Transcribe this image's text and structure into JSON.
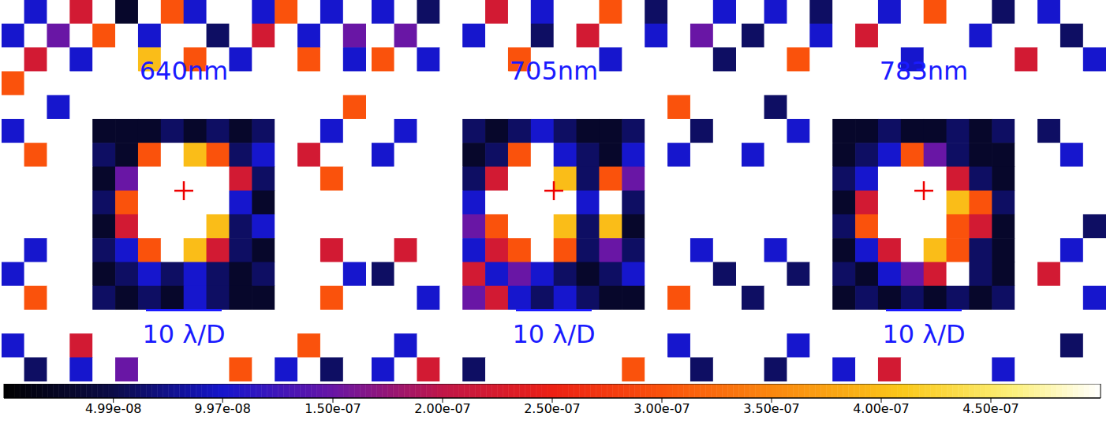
{
  "chart_data": {
    "type": "heatmap",
    "tick_labels": false,
    "panels": [
      {
        "title": "640nm",
        "annotation": "10 λ/D",
        "cells": [
          [
            5e-07,
            1e-07,
            5e-07,
            2.2e-07,
            5e-07,
            3e-08,
            5e-07,
            3e-07,
            1e-07,
            5e-07,
            5e-07,
            1e-07,
            3e-07,
            5e-07,
            1e-07,
            5e-07
          ],
          [
            1e-07,
            5e-07,
            1.5e-07,
            5e-07,
            3e-07,
            5e-07,
            1e-07,
            5e-07,
            5e-07,
            6e-08,
            5e-07,
            2.2e-07,
            5e-07,
            1e-07,
            5e-07,
            1.5e-07
          ],
          [
            5e-07,
            2.2e-07,
            5e-07,
            1e-07,
            5e-07,
            5e-07,
            4e-07,
            5e-07,
            3e-07,
            5e-07,
            1e-07,
            5e-07,
            5e-07,
            3e-07,
            5e-07,
            1e-07
          ],
          [
            3e-07,
            5e-07,
            5e-07,
            5e-07,
            5e-07,
            5e-07,
            5e-07,
            5e-07,
            5e-07,
            5e-07,
            5e-07,
            5e-07,
            5e-07,
            5e-07,
            5e-07,
            5e-07
          ],
          [
            5e-07,
            5e-07,
            1e-07,
            5e-07,
            5e-07,
            5e-07,
            5e-07,
            5e-07,
            5e-07,
            5e-07,
            5e-07,
            5e-07,
            5e-07,
            5e-07,
            5e-07,
            3e-07
          ],
          [
            1e-07,
            5e-07,
            5e-07,
            5e-07,
            3e-08,
            3e-08,
            3e-08,
            6e-08,
            3e-08,
            6e-08,
            3e-08,
            6e-08,
            5e-07,
            5e-07,
            1e-07,
            5e-07
          ],
          [
            5e-07,
            3e-07,
            5e-07,
            5e-07,
            6e-08,
            3e-08,
            3e-07,
            5e-07,
            4e-07,
            3e-07,
            6e-08,
            1e-07,
            5e-07,
            2.2e-07,
            5e-07,
            5e-07
          ],
          [
            5e-07,
            5e-07,
            5e-07,
            5e-07,
            3e-08,
            1.5e-07,
            5e-07,
            5e-07,
            5e-07,
            5e-07,
            2.2e-07,
            6e-08,
            5e-07,
            5e-07,
            3e-07,
            5e-07
          ],
          [
            5e-07,
            5e-07,
            5e-07,
            5e-07,
            6e-08,
            3e-07,
            5e-07,
            5e-07,
            5e-07,
            5e-07,
            1e-07,
            3e-08,
            5e-07,
            5e-07,
            5e-07,
            5e-07
          ],
          [
            5e-07,
            5e-07,
            5e-07,
            5e-07,
            3e-08,
            2.2e-07,
            5e-07,
            5e-07,
            5e-07,
            4e-07,
            6e-08,
            1e-07,
            5e-07,
            5e-07,
            5e-07,
            5e-07
          ],
          [
            5e-07,
            1e-07,
            5e-07,
            5e-07,
            6e-08,
            1e-07,
            3e-07,
            5e-07,
            4e-07,
            2.2e-07,
            6e-08,
            3e-08,
            5e-07,
            5e-07,
            2.2e-07,
            5e-07
          ],
          [
            1e-07,
            5e-07,
            5e-07,
            5e-07,
            3e-08,
            6e-08,
            1e-07,
            6e-08,
            1e-07,
            6e-08,
            3e-08,
            6e-08,
            5e-07,
            5e-07,
            5e-07,
            1e-07
          ],
          [
            5e-07,
            3e-07,
            5e-07,
            5e-07,
            6e-08,
            3e-08,
            6e-08,
            3e-08,
            1e-07,
            6e-08,
            3e-08,
            3e-08,
            5e-07,
            5e-07,
            3e-07,
            5e-07
          ],
          [
            5e-07,
            5e-07,
            5e-07,
            5e-07,
            5e-07,
            5e-07,
            5e-07,
            5e-07,
            5e-07,
            5e-07,
            5e-07,
            5e-07,
            5e-07,
            5e-07,
            5e-07,
            5e-07
          ],
          [
            1e-07,
            5e-07,
            5e-07,
            2.2e-07,
            5e-07,
            5e-07,
            5e-07,
            5e-07,
            5e-07,
            5e-07,
            5e-07,
            5e-07,
            5e-07,
            3e-07,
            5e-07,
            5e-07
          ],
          [
            5e-07,
            6e-08,
            5e-07,
            1e-07,
            5e-07,
            1.5e-07,
            5e-07,
            5e-07,
            5e-07,
            5e-07,
            3e-07,
            5e-07,
            1e-07,
            5e-07,
            6e-08,
            5e-07
          ]
        ]
      },
      {
        "title": "705nm",
        "annotation": "10 λ/D",
        "cells": [
          [
            1e-07,
            5e-07,
            6e-08,
            5e-07,
            5e-07,
            2.2e-07,
            5e-07,
            1e-07,
            5e-07,
            5e-07,
            3e-07,
            5e-07,
            6e-08,
            5e-07,
            5e-07,
            1e-07
          ],
          [
            5e-07,
            1.5e-07,
            5e-07,
            5e-07,
            1e-07,
            5e-07,
            5e-07,
            6e-08,
            5e-07,
            2.2e-07,
            5e-07,
            5e-07,
            1e-07,
            5e-07,
            1.5e-07,
            5e-07
          ],
          [
            3e-07,
            5e-07,
            1e-07,
            5e-07,
            5e-07,
            5e-07,
            3e-07,
            5e-07,
            5e-07,
            5e-07,
            1e-07,
            5e-07,
            5e-07,
            5e-07,
            5e-07,
            6e-08
          ],
          [
            5e-07,
            5e-07,
            5e-07,
            5e-07,
            5e-07,
            5e-07,
            5e-07,
            5e-07,
            5e-07,
            5e-07,
            5e-07,
            5e-07,
            5e-07,
            5e-07,
            5e-07,
            5e-07
          ],
          [
            5e-07,
            5e-07,
            5e-07,
            5e-07,
            5e-07,
            5e-07,
            5e-07,
            5e-07,
            5e-07,
            5e-07,
            5e-07,
            5e-07,
            5e-07,
            3e-07,
            5e-07,
            5e-07
          ],
          [
            5e-07,
            1e-07,
            5e-07,
            5e-07,
            6e-08,
            3e-08,
            6e-08,
            1e-07,
            6e-08,
            3e-08,
            3e-08,
            6e-08,
            5e-07,
            5e-07,
            6e-08,
            5e-07
          ],
          [
            1e-07,
            5e-07,
            5e-07,
            5e-07,
            3e-08,
            6e-08,
            3e-07,
            5e-07,
            1e-07,
            6e-08,
            3e-08,
            1e-07,
            5e-07,
            1e-07,
            5e-07,
            5e-07
          ],
          [
            5e-07,
            5e-07,
            5e-07,
            5e-07,
            6e-08,
            2.2e-07,
            5e-07,
            5e-07,
            4e-07,
            6e-08,
            3e-07,
            1.5e-07,
            5e-07,
            5e-07,
            5e-07,
            5e-07
          ],
          [
            5e-07,
            5e-07,
            5e-07,
            5e-07,
            1e-07,
            5e-07,
            5e-07,
            5e-07,
            5e-07,
            1e-07,
            5e-07,
            6e-08,
            5e-07,
            5e-07,
            5e-07,
            5e-07
          ],
          [
            5e-07,
            5e-07,
            5e-07,
            5e-07,
            1.5e-07,
            3e-07,
            5e-07,
            5e-07,
            4e-07,
            6e-08,
            4e-07,
            3e-08,
            5e-07,
            5e-07,
            5e-07,
            5e-07
          ],
          [
            5e-07,
            2.2e-07,
            5e-07,
            5e-07,
            1e-07,
            2.2e-07,
            3e-07,
            5e-07,
            3e-07,
            6e-08,
            1.5e-07,
            6e-08,
            5e-07,
            5e-07,
            1e-07,
            5e-07
          ],
          [
            6e-08,
            5e-07,
            5e-07,
            5e-07,
            2.2e-07,
            1e-07,
            1.5e-07,
            1e-07,
            6e-08,
            3e-08,
            6e-08,
            1e-07,
            5e-07,
            5e-07,
            5e-07,
            6e-08
          ],
          [
            5e-07,
            5e-07,
            1e-07,
            5e-07,
            1.5e-07,
            2.2e-07,
            1e-07,
            6e-08,
            1e-07,
            6e-08,
            3e-08,
            3e-08,
            5e-07,
            3e-07,
            5e-07,
            5e-07
          ],
          [
            5e-07,
            5e-07,
            5e-07,
            5e-07,
            5e-07,
            5e-07,
            5e-07,
            5e-07,
            5e-07,
            5e-07,
            5e-07,
            5e-07,
            5e-07,
            5e-07,
            5e-07,
            5e-07
          ],
          [
            5e-07,
            1e-07,
            5e-07,
            5e-07,
            5e-07,
            5e-07,
            5e-07,
            5e-07,
            5e-07,
            5e-07,
            5e-07,
            5e-07,
            5e-07,
            1e-07,
            5e-07,
            5e-07
          ],
          [
            1e-07,
            5e-07,
            2.2e-07,
            5e-07,
            6e-08,
            5e-07,
            5e-07,
            5e-07,
            5e-07,
            5e-07,
            5e-07,
            3e-07,
            5e-07,
            5e-07,
            6e-08,
            5e-07
          ]
        ]
      },
      {
        "title": "783nm",
        "annotation": "10 λ/D",
        "cells": [
          [
            5e-07,
            1e-07,
            5e-07,
            6e-08,
            5e-07,
            5e-07,
            1e-07,
            5e-07,
            3e-07,
            5e-07,
            5e-07,
            6e-08,
            5e-07,
            1e-07,
            5e-07,
            5e-07
          ],
          [
            6e-08,
            5e-07,
            5e-07,
            1e-07,
            5e-07,
            2.2e-07,
            5e-07,
            5e-07,
            5e-07,
            5e-07,
            1e-07,
            5e-07,
            5e-07,
            5e-07,
            6e-08,
            5e-07
          ],
          [
            5e-07,
            5e-07,
            3e-07,
            5e-07,
            5e-07,
            5e-07,
            5e-07,
            1e-07,
            5e-07,
            5e-07,
            5e-07,
            5e-07,
            2.2e-07,
            5e-07,
            5e-07,
            1e-07
          ],
          [
            5e-07,
            5e-07,
            5e-07,
            5e-07,
            5e-07,
            5e-07,
            5e-07,
            5e-07,
            5e-07,
            5e-07,
            5e-07,
            5e-07,
            5e-07,
            5e-07,
            5e-07,
            5e-07
          ],
          [
            5e-07,
            6e-08,
            5e-07,
            5e-07,
            5e-07,
            5e-07,
            5e-07,
            5e-07,
            5e-07,
            5e-07,
            5e-07,
            5e-07,
            5e-07,
            5e-07,
            5e-07,
            5e-07
          ],
          [
            5e-07,
            5e-07,
            1e-07,
            5e-07,
            3e-08,
            3e-08,
            6e-08,
            3e-08,
            3e-08,
            6e-08,
            3e-08,
            6e-08,
            5e-07,
            6e-08,
            5e-07,
            5e-07
          ],
          [
            1e-07,
            5e-07,
            5e-07,
            5e-07,
            3e-08,
            6e-08,
            1e-07,
            3e-07,
            1.5e-07,
            6e-08,
            3e-08,
            3e-08,
            5e-07,
            5e-07,
            1e-07,
            5e-07
          ],
          [
            5e-07,
            5e-07,
            5e-07,
            5e-07,
            6e-08,
            1e-07,
            5e-07,
            5e-07,
            5e-07,
            2.2e-07,
            6e-08,
            3e-08,
            5e-07,
            5e-07,
            5e-07,
            5e-07
          ],
          [
            5e-07,
            5e-07,
            5e-07,
            5e-07,
            3e-08,
            2.2e-07,
            5e-07,
            5e-07,
            5e-07,
            4e-07,
            3e-07,
            6e-08,
            5e-07,
            5e-07,
            5e-07,
            5e-07
          ],
          [
            5e-07,
            5e-07,
            5e-07,
            5e-07,
            6e-08,
            3e-07,
            5e-07,
            5e-07,
            5e-07,
            3e-07,
            2.2e-07,
            3e-08,
            5e-07,
            5e-07,
            5e-07,
            6e-08
          ],
          [
            5e-07,
            1e-07,
            5e-07,
            5e-07,
            3e-08,
            1e-07,
            2.2e-07,
            5e-07,
            4e-07,
            3e-07,
            6e-08,
            3e-08,
            5e-07,
            5e-07,
            1e-07,
            5e-07
          ],
          [
            5e-07,
            5e-07,
            6e-08,
            5e-07,
            6e-08,
            3e-08,
            1e-07,
            1.5e-07,
            2.2e-07,
            5e-07,
            6e-08,
            3e-08,
            5e-07,
            2.2e-07,
            5e-07,
            5e-07
          ],
          [
            6e-08,
            5e-07,
            5e-07,
            5e-07,
            3e-08,
            6e-08,
            3e-08,
            6e-08,
            3e-08,
            6e-08,
            3e-08,
            6e-08,
            5e-07,
            5e-07,
            5e-07,
            1e-07
          ],
          [
            5e-07,
            5e-07,
            5e-07,
            5e-07,
            5e-07,
            5e-07,
            5e-07,
            5e-07,
            5e-07,
            5e-07,
            5e-07,
            5e-07,
            5e-07,
            5e-07,
            5e-07,
            5e-07
          ],
          [
            5e-07,
            5e-07,
            1e-07,
            5e-07,
            5e-07,
            5e-07,
            5e-07,
            5e-07,
            5e-07,
            5e-07,
            5e-07,
            5e-07,
            5e-07,
            5e-07,
            6e-08,
            5e-07
          ],
          [
            5e-07,
            6e-08,
            5e-07,
            5e-07,
            1e-07,
            5e-07,
            2.2e-07,
            5e-07,
            5e-07,
            5e-07,
            5e-07,
            1e-07,
            5e-07,
            5e-07,
            5e-07,
            5e-07
          ]
        ]
      }
    ],
    "colorbar": {
      "range": [
        0,
        5e-07
      ],
      "ticks": [
        {
          "value": 4.99e-08,
          "label": "4.99e-08"
        },
        {
          "value": 9.97e-08,
          "label": "9.97e-08"
        },
        {
          "value": 1.5e-07,
          "label": "1.50e-07"
        },
        {
          "value": 2e-07,
          "label": "2.00e-07"
        },
        {
          "value": 2.5e-07,
          "label": "2.50e-07"
        },
        {
          "value": 3e-07,
          "label": "3.00e-07"
        },
        {
          "value": 3.5e-07,
          "label": "3.50e-07"
        },
        {
          "value": 4e-07,
          "label": "4.00e-07"
        },
        {
          "value": 4.5e-07,
          "label": "4.50e-07"
        }
      ]
    }
  }
}
